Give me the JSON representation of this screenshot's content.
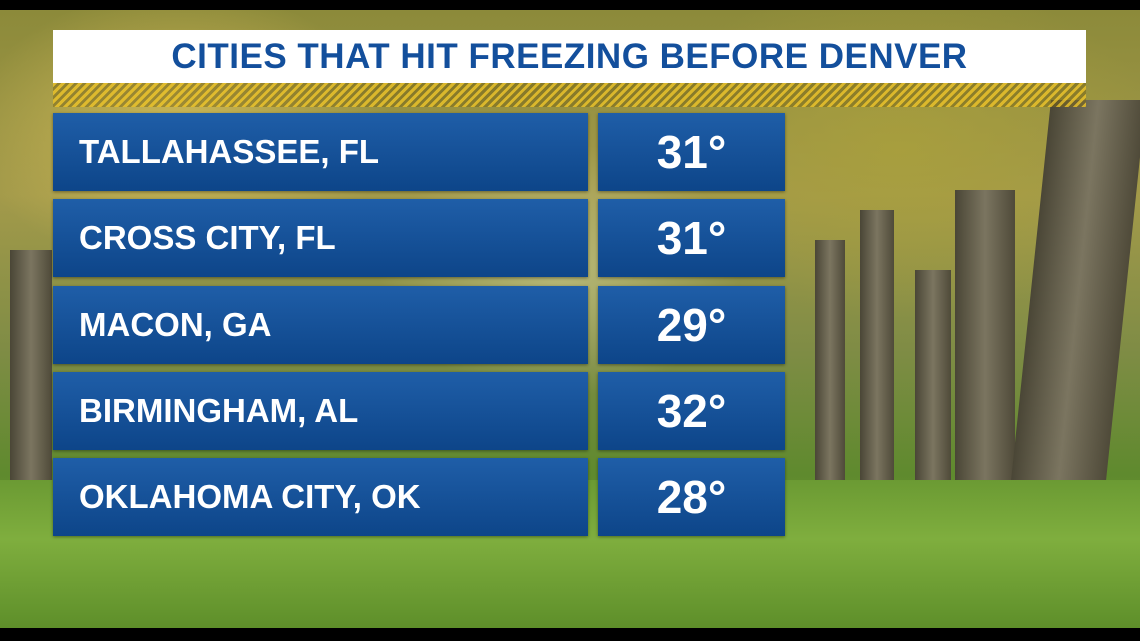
{
  "header": {
    "title": "CITIES THAT HIT FREEZING BEFORE DENVER"
  },
  "table": {
    "rows": [
      [
        "TALLAHASSEE, FL",
        "31°"
      ],
      [
        "CROSS CITY, FL",
        "31°"
      ],
      [
        "MACON, GA",
        "29°"
      ],
      [
        "BIRMINGHAM, AL",
        "32°"
      ],
      [
        "OKLAHOMA CITY, OK",
        "28°"
      ]
    ]
  }
}
